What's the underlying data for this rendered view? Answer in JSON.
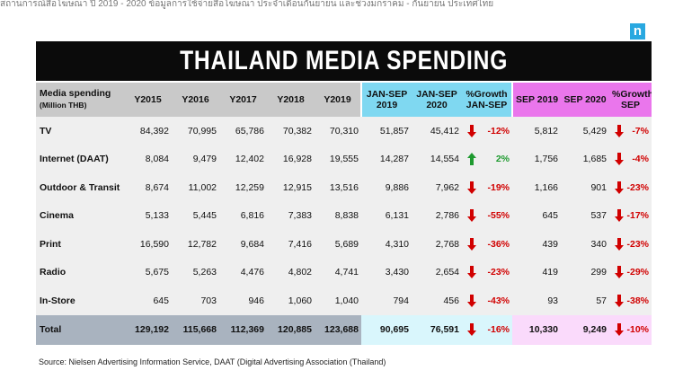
{
  "header_text": "สถานการณ์สื่อโฆษณา ปี 2019 - 2020 ข้อมูลการใช้จ่ายสื่อโฆษณา ประจำเดือนกันยายน และช่วงมกราคม - กันยายน ประเทศไทย",
  "logo_letter": "n",
  "title": "THAILAND MEDIA SPENDING",
  "columns": {
    "label_line1": "Media spending",
    "label_line2": "(Million THB)",
    "y2015": "Y2015",
    "y2016": "Y2016",
    "y2017": "Y2017",
    "y2018": "Y2018",
    "y2019": "Y2019",
    "jansep2019_l1": "JAN-SEP",
    "jansep2019_l2": "2019",
    "jansep2020_l1": "JAN-SEP",
    "jansep2020_l2": "2020",
    "growth_jansep_l1": "%Growth",
    "growth_jansep_l2": "JAN-SEP",
    "sep2019": "SEP 2019",
    "sep2020": "SEP 2020",
    "growth_sep_l1": "%Growth",
    "growth_sep_l2": "SEP"
  },
  "rows": [
    {
      "label": "TV",
      "y2015": "84,392",
      "y2016": "70,995",
      "y2017": "65,786",
      "y2018": "70,382",
      "y2019": "70,310",
      "jansep2019": "51,857",
      "jansep2020": "45,412",
      "growth_jansep": "-12%",
      "growth_jansep_dir": "down",
      "sep2019": "5,812",
      "sep2020": "5,429",
      "growth_sep": "-7%",
      "growth_sep_dir": "down"
    },
    {
      "label": "Internet (DAAT)",
      "y2015": "8,084",
      "y2016": "9,479",
      "y2017": "12,402",
      "y2018": "16,928",
      "y2019": "19,555",
      "jansep2019": "14,287",
      "jansep2020": "14,554",
      "growth_jansep": "2%",
      "growth_jansep_dir": "up",
      "sep2019": "1,756",
      "sep2020": "1,685",
      "growth_sep": "-4%",
      "growth_sep_dir": "down"
    },
    {
      "label": "Outdoor & Transit",
      "y2015": "8,674",
      "y2016": "11,002",
      "y2017": "12,259",
      "y2018": "12,915",
      "y2019": "13,516",
      "jansep2019": "9,886",
      "jansep2020": "7,962",
      "growth_jansep": "-19%",
      "growth_jansep_dir": "down",
      "sep2019": "1,166",
      "sep2020": "901",
      "growth_sep": "-23%",
      "growth_sep_dir": "down"
    },
    {
      "label": "Cinema",
      "y2015": "5,133",
      "y2016": "5,445",
      "y2017": "6,816",
      "y2018": "7,383",
      "y2019": "8,838",
      "jansep2019": "6,131",
      "jansep2020": "2,786",
      "growth_jansep": "-55%",
      "growth_jansep_dir": "down",
      "sep2019": "645",
      "sep2020": "537",
      "growth_sep": "-17%",
      "growth_sep_dir": "down"
    },
    {
      "label": "Print",
      "y2015": "16,590",
      "y2016": "12,782",
      "y2017": "9,684",
      "y2018": "7,416",
      "y2019": "5,689",
      "jansep2019": "4,310",
      "jansep2020": "2,768",
      "growth_jansep": "-36%",
      "growth_jansep_dir": "down",
      "sep2019": "439",
      "sep2020": "340",
      "growth_sep": "-23%",
      "growth_sep_dir": "down"
    },
    {
      "label": "Radio",
      "y2015": "5,675",
      "y2016": "5,263",
      "y2017": "4,476",
      "y2018": "4,802",
      "y2019": "4,741",
      "jansep2019": "3,430",
      "jansep2020": "2,654",
      "growth_jansep": "-23%",
      "growth_jansep_dir": "down",
      "sep2019": "419",
      "sep2020": "299",
      "growth_sep": "-29%",
      "growth_sep_dir": "down"
    },
    {
      "label": "In-Store",
      "y2015": "645",
      "y2016": "703",
      "y2017": "946",
      "y2018": "1,060",
      "y2019": "1,040",
      "jansep2019": "794",
      "jansep2020": "456",
      "growth_jansep": "-43%",
      "growth_jansep_dir": "down",
      "sep2019": "93",
      "sep2020": "57",
      "growth_sep": "-38%",
      "growth_sep_dir": "down"
    }
  ],
  "total": {
    "label": "Total",
    "y2015": "129,192",
    "y2016": "115,668",
    "y2017": "112,369",
    "y2018": "120,885",
    "y2019": "123,688",
    "jansep2019": "90,695",
    "jansep2020": "76,591",
    "growth_jansep": "-16%",
    "growth_jansep_dir": "down",
    "sep2019": "10,330",
    "sep2020": "9,249",
    "growth_sep": "-10%",
    "growth_sep_dir": "down"
  },
  "source": "Source: Nielsen Advertising Information Service, DAAT (Digital Advertising Association (Thailand)",
  "colors": {
    "up": "#1e9a2f",
    "down": "#d10000",
    "blue_header": "#7fd8f1",
    "pink_header": "#ea76ec",
    "banner": "#0b0b0b"
  }
}
